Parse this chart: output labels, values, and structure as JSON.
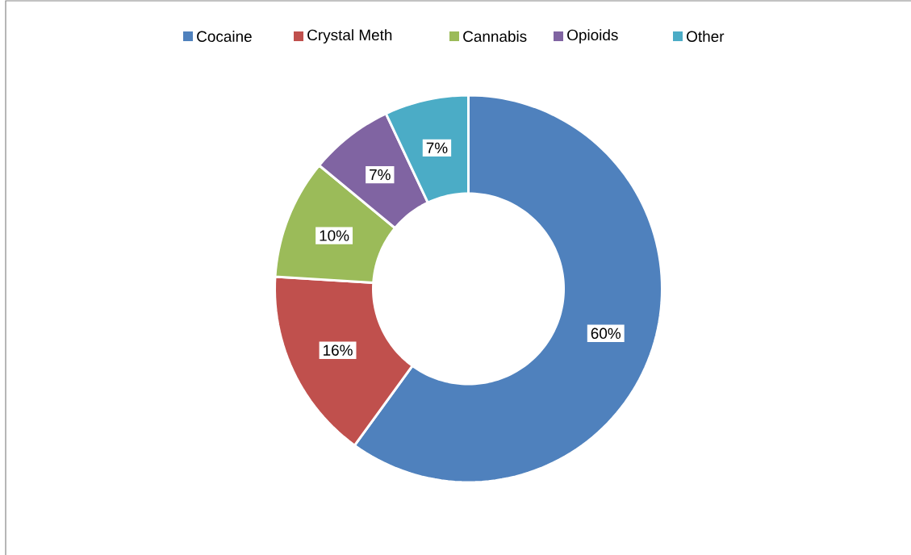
{
  "chart_data": {
    "type": "donut",
    "categories": [
      "Cocaine",
      "Crystal Meth",
      "Cannabis",
      "Opioids",
      "Other"
    ],
    "values": [
      60,
      16,
      10,
      7,
      7
    ],
    "colors": [
      "#4f81bd",
      "#c0504d",
      "#9bbb59",
      "#8064a2",
      "#4bacc6"
    ],
    "value_labels": [
      "60%",
      "16%",
      "10%",
      "7%",
      "7%"
    ],
    "legend": "top"
  }
}
